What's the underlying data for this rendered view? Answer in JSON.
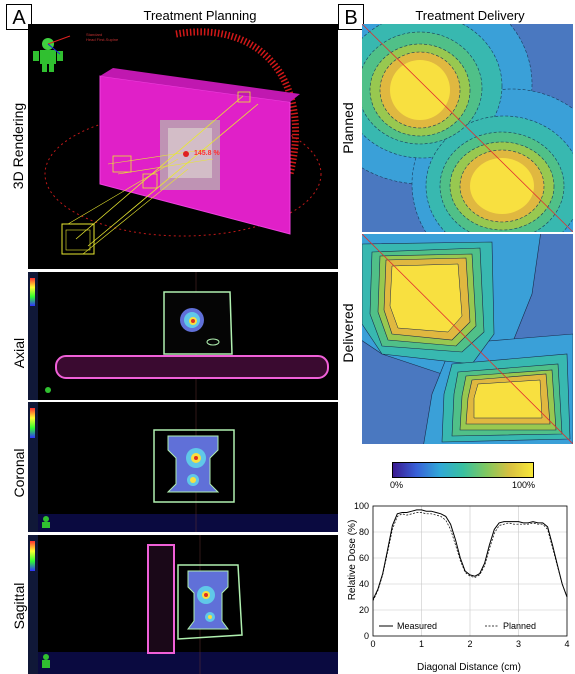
{
  "panels": {
    "a": {
      "letter": "A",
      "title": "Treatment Planning",
      "row_labels": [
        "3D Rendering",
        "Axial",
        "Coronal",
        "Sagittal"
      ],
      "rendering_text": {
        "line1": "Standard",
        "line2": "Head First-Supine",
        "dose_readout": "145.8 %"
      }
    },
    "b": {
      "letter": "B",
      "title": "Treatment Delivery",
      "row_labels": [
        "Planned",
        "Delivered"
      ],
      "colorbar": {
        "min_label": "0%",
        "max_label": "100%"
      }
    }
  },
  "colors": {
    "couch_magenta": "#e020c8",
    "arc_red": "#d01818",
    "beam_yellow": "#e8e830",
    "contour_green": "#b0f0b0",
    "contour_pink": "#f060d8",
    "hot_yellow": "#f8e040",
    "line_black": "#000000"
  },
  "chart_data": {
    "type": "line",
    "xlabel": "Diagonal Distance (cm)",
    "ylabel": "Relative Dose (%)",
    "xlim": [
      0,
      4
    ],
    "ylim": [
      0,
      100
    ],
    "xticks": [
      "0",
      "1",
      "2",
      "3",
      "4"
    ],
    "yticks": [
      "0",
      "20",
      "40",
      "60",
      "80",
      "100"
    ],
    "grid": true,
    "legend": "bottom",
    "series": [
      {
        "name": "Measured",
        "style": "solid",
        "x": [
          0,
          0.1,
          0.2,
          0.3,
          0.4,
          0.5,
          0.6,
          0.7,
          0.8,
          0.9,
          1.0,
          1.1,
          1.2,
          1.3,
          1.4,
          1.5,
          1.6,
          1.7,
          1.8,
          1.9,
          2.0,
          2.1,
          2.2,
          2.3,
          2.4,
          2.5,
          2.6,
          2.7,
          2.8,
          2.9,
          3.0,
          3.1,
          3.2,
          3.3,
          3.4,
          3.5,
          3.6,
          3.7,
          3.8,
          3.9,
          4.0
        ],
        "y": [
          28,
          36,
          48,
          66,
          85,
          94,
          95,
          95,
          96,
          97,
          97,
          96,
          96,
          95,
          94,
          92,
          86,
          74,
          60,
          50,
          47,
          46,
          48,
          56,
          70,
          82,
          87,
          88,
          88,
          88,
          88,
          87,
          87,
          88,
          87,
          87,
          84,
          70,
          55,
          40,
          30
        ]
      },
      {
        "name": "Planned",
        "style": "dashed",
        "x": [
          0,
          0.1,
          0.2,
          0.3,
          0.4,
          0.5,
          0.6,
          0.7,
          0.8,
          0.9,
          1.0,
          1.1,
          1.2,
          1.3,
          1.4,
          1.5,
          1.6,
          1.7,
          1.8,
          1.9,
          2.0,
          2.1,
          2.2,
          2.3,
          2.4,
          2.5,
          2.6,
          2.7,
          2.8,
          2.9,
          3.0,
          3.1,
          3.2,
          3.3,
          3.4,
          3.5,
          3.6,
          3.7,
          3.8,
          3.9,
          4.0
        ],
        "y": [
          27,
          35,
          47,
          64,
          82,
          92,
          94,
          93,
          94,
          95,
          95,
          94,
          94,
          93,
          92,
          89,
          82,
          70,
          58,
          49,
          46,
          45,
          47,
          54,
          67,
          79,
          85,
          86,
          87,
          86,
          86,
          86,
          86,
          87,
          86,
          86,
          82,
          68,
          54,
          40,
          30
        ]
      }
    ]
  }
}
